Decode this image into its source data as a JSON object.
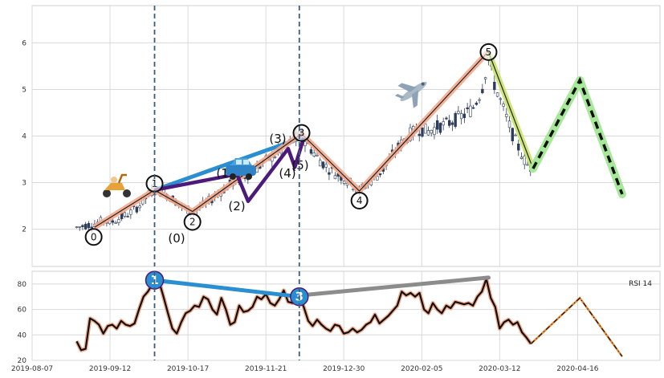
{
  "chart_data": [
    {
      "type": "candlestick",
      "title": "",
      "xlabel": "",
      "ylabel": "",
      "ylim": [
        1.2,
        6.8
      ],
      "yticks": [
        "2",
        "3",
        "4",
        "5",
        "6"
      ],
      "grid": true,
      "price_close": [
        [
          0,
          2.04
        ],
        [
          4,
          2.08
        ],
        [
          8,
          2.12
        ],
        [
          12,
          2.18
        ],
        [
          16,
          2.16
        ],
        [
          20,
          2.25
        ],
        [
          24,
          2.35
        ],
        [
          28,
          2.5
        ],
        [
          31,
          2.66
        ],
        [
          33,
          2.78
        ],
        [
          35,
          2.84
        ],
        [
          38,
          2.8
        ],
        [
          41,
          2.74
        ],
        [
          44,
          2.62
        ],
        [
          47,
          2.5
        ],
        [
          50,
          2.42
        ],
        [
          52,
          2.38
        ],
        [
          55,
          2.45
        ],
        [
          58,
          2.55
        ],
        [
          62,
          2.7
        ],
        [
          66,
          2.85
        ],
        [
          70,
          3.0
        ],
        [
          74,
          3.1
        ],
        [
          78,
          3.2
        ],
        [
          82,
          3.35
        ],
        [
          86,
          3.5
        ],
        [
          90,
          3.62
        ],
        [
          94,
          3.78
        ],
        [
          98,
          3.92
        ],
        [
          101,
          4.05
        ],
        [
          104,
          3.8
        ],
        [
          108,
          3.55
        ],
        [
          112,
          3.35
        ],
        [
          116,
          3.2
        ],
        [
          120,
          3.1
        ],
        [
          124,
          2.95
        ],
        [
          127,
          2.82
        ],
        [
          130,
          2.95
        ],
        [
          134,
          3.1
        ],
        [
          138,
          3.3
        ],
        [
          142,
          3.6
        ],
        [
          146,
          3.85
        ],
        [
          150,
          4.05
        ],
        [
          154,
          4.15
        ],
        [
          158,
          4.1
        ],
        [
          162,
          4.2
        ],
        [
          166,
          4.25
        ],
        [
          170,
          4.35
        ],
        [
          174,
          4.45
        ],
        [
          178,
          4.6
        ],
        [
          182,
          5.0
        ],
        [
          185,
          5.7
        ],
        [
          187,
          5.2
        ],
        [
          190,
          4.8
        ],
        [
          193,
          4.4
        ],
        [
          196,
          4.0
        ],
        [
          199,
          3.7
        ],
        [
          202,
          3.4
        ],
        [
          204,
          3.32
        ]
      ],
      "waves": {
        "primary": [
          [
            8,
            2.04
          ],
          [
            35,
            2.84
          ],
          [
            52,
            2.38
          ],
          [
            101,
            4.05
          ],
          [
            127,
            2.82
          ],
          [
            185,
            5.82
          ]
        ],
        "primary_labels": [
          "0",
          "1",
          "2",
          "3",
          "4",
          "5"
        ],
        "sub": [
          [
            35,
            2.84
          ],
          [
            72,
            3.18
          ],
          [
            77,
            2.6
          ],
          [
            95,
            3.73
          ],
          [
            98,
            3.33
          ],
          [
            102,
            3.96
          ]
        ],
        "sub_labels": [
          "(1)",
          "(2)",
          "(3)",
          "(4)",
          "(5)"
        ],
        "extra_label": "(0)",
        "trendline_price": [
          [
            35,
            2.84
          ],
          [
            101,
            3.96
          ]
        ],
        "correction": [
          [
            185,
            5.8
          ],
          [
            205,
            3.3
          ]
        ],
        "projection": [
          [
            205,
            3.3
          ],
          [
            226,
            5.2
          ],
          [
            245,
            2.75
          ]
        ]
      },
      "vlines": [
        35,
        100
      ],
      "icons": [
        "scooter-icon",
        "car-icon",
        "airplane-icon"
      ]
    },
    {
      "type": "line",
      "legend": "RSI 14",
      "legend_position": "top-right",
      "ylim": [
        20,
        90
      ],
      "yticks": [
        "20",
        "40",
        "60",
        "80"
      ],
      "x": [
        0,
        2,
        4,
        6,
        8,
        10,
        12,
        14,
        16,
        18,
        20,
        22,
        24,
        26,
        28,
        30,
        32,
        35,
        37,
        39,
        41,
        43,
        45,
        47,
        49,
        51,
        53,
        55,
        57,
        59,
        61,
        63,
        65,
        67,
        69,
        71,
        73,
        75,
        77,
        79,
        81,
        83,
        85,
        87,
        89,
        91,
        93,
        95,
        97,
        100,
        102,
        104,
        106,
        108,
        110,
        112,
        114,
        116,
        118,
        120,
        122,
        124,
        126,
        128,
        130,
        132,
        134,
        136,
        138,
        140,
        142,
        144,
        146,
        148,
        150,
        152,
        154,
        156,
        158,
        160,
        162,
        164,
        166,
        168,
        170,
        172,
        174,
        176,
        178,
        180,
        182,
        184,
        186,
        188,
        190,
        192,
        194,
        196,
        198,
        200,
        202,
        204
      ],
      "values": [
        35,
        28,
        29,
        53,
        51,
        48,
        41,
        47,
        48,
        45,
        51,
        48,
        47,
        49,
        60,
        70,
        74,
        83,
        82,
        70,
        57,
        45,
        41,
        50,
        57,
        59,
        63,
        62,
        70,
        68,
        60,
        56,
        69,
        60,
        48,
        50,
        63,
        58,
        59,
        62,
        70,
        68,
        72,
        65,
        63,
        68,
        75,
        66,
        65,
        70,
        62,
        51,
        47,
        52,
        48,
        45,
        43,
        48,
        47,
        41,
        42,
        45,
        42,
        44,
        48,
        50,
        56,
        49,
        52,
        55,
        59,
        63,
        74,
        71,
        73,
        70,
        73,
        60,
        57,
        65,
        60,
        57,
        63,
        61,
        66,
        65,
        64,
        65,
        63,
        70,
        74,
        84,
        69,
        62,
        45,
        50,
        52,
        48,
        50,
        42,
        38,
        33
      ],
      "projection": [
        [
          204,
          33
        ],
        [
          226,
          69
        ],
        [
          245,
          23
        ]
      ],
      "trendlines": [
        [
          [
            35,
            83
          ],
          [
            100,
            70
          ]
        ],
        [
          [
            100,
            71
          ],
          [
            185,
            85
          ]
        ]
      ],
      "labels": [
        [
          35,
          83,
          "1"
        ],
        [
          100,
          70,
          "3"
        ]
      ]
    }
  ],
  "x_axis": {
    "range_days": [
      -20,
      262
    ],
    "ticks": [
      {
        "day": -20,
        "label": "2019-08-07"
      },
      {
        "day": 15,
        "label": "2019-09-12"
      },
      {
        "day": 50,
        "label": "2019-10-17"
      },
      {
        "day": 85,
        "label": "2019-11-21"
      },
      {
        "day": 120,
        "label": "2019-12-30"
      },
      {
        "day": 155,
        "label": "2020-02-05"
      },
      {
        "day": 190,
        "label": "2020-03-12"
      },
      {
        "day": 225,
        "label": "2020-04-16"
      }
    ]
  },
  "colors": {
    "background": "#ffffff",
    "grid": "#d9d9d9",
    "wave_primary": "#f3a98c",
    "wave_sub": "#4b1a7a",
    "trend_blue": "#2a8fd0",
    "trend_gray": "#8c8c8c",
    "correction": "#c8e36a",
    "projection_glow": "#a8e89a",
    "candle": "#2e3d5c",
    "vline": "#3f5b7a"
  }
}
